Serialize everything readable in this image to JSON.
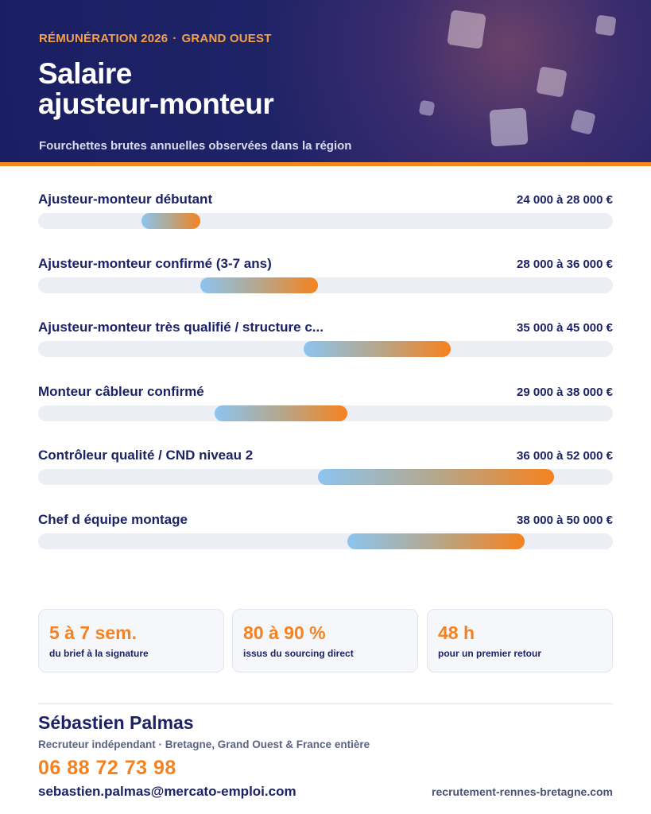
{
  "header": {
    "kicker_left": "RÉMUNÉRATION 2026",
    "kicker_sep": "·",
    "kicker_right": "GRAND OUEST",
    "title_line1": "Salaire",
    "title_line2": "ajusteur-monteur",
    "subtitle": "Fourchettes brutes annuelles observées dans la région"
  },
  "salaries": [
    {
      "label": "Ajusteur-monteur débutant",
      "range": "24 000 à 28 000 €",
      "min": 24000,
      "max": 28000
    },
    {
      "label": "Ajusteur-monteur confirmé (3-7 ans)",
      "range": "28 000 à 36 000 €",
      "min": 28000,
      "max": 36000
    },
    {
      "label": "Ajusteur-monteur très qualifié / structure c...",
      "range": "35 000 à 45 000 €",
      "min": 35000,
      "max": 45000
    },
    {
      "label": "Monteur câbleur confirmé",
      "range": "29 000 à 38 000 €",
      "min": 29000,
      "max": 38000
    },
    {
      "label": "Contrôleur qualité / CND niveau 2",
      "range": "36 000 à 52 000 €",
      "min": 36000,
      "max": 52000
    },
    {
      "label": "Chef d équipe montage",
      "range": "38 000 à 50 000 €",
      "min": 38000,
      "max": 50000
    }
  ],
  "stats": [
    {
      "value": "5 à 7 sem.",
      "caption": "du brief à la signature"
    },
    {
      "value": "80 à 90 %",
      "caption": "issus du sourcing direct"
    },
    {
      "value": "48 h",
      "caption": "pour un premier retour"
    }
  ],
  "contact": {
    "name": "Sébastien Palmas",
    "role": "Recruteur indépendant · Bretagne, Grand Ouest & France entière",
    "phone": "06 88 72 73 98",
    "email": "sebastien.palmas@mercato-emploi.com",
    "website": "recrutement-rennes-bretagne.com"
  },
  "colors": {
    "navy": "#1b2266",
    "accent_orange": "#f5821f",
    "bar_start_blue": "#8cc4ef",
    "track": "#eceef5"
  }
}
